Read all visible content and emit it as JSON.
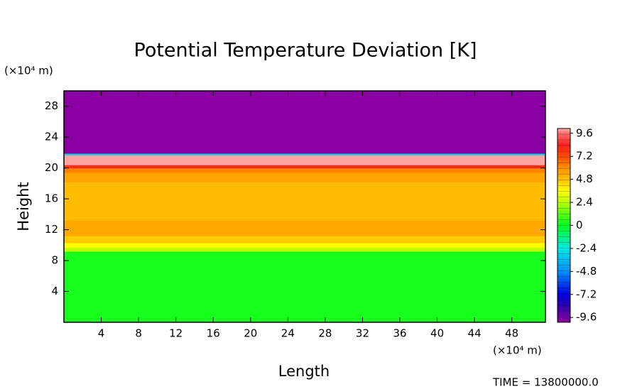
{
  "chart_data": {
    "type": "contour",
    "title": "Potential Temperature Deviation [K]",
    "x_label": "Length",
    "y_label": "Height",
    "x_unit": "(×10⁴ m)",
    "y_unit": "(×10⁴ m)",
    "annotation": "TIME = 13800000.0",
    "xlim": [
      0,
      51.6
    ],
    "ylim": [
      0,
      30
    ],
    "xticks": [
      4,
      8,
      12,
      16,
      20,
      24,
      28,
      32,
      36,
      40,
      44,
      48
    ],
    "yticks": [
      4,
      8,
      12,
      16,
      20,
      24,
      28
    ],
    "zlim": [
      -10.1,
      10.1
    ],
    "zticks": [
      9.6,
      7.2,
      4.8,
      2.4,
      0,
      -2.4,
      -4.8,
      -7.2,
      -9.6
    ],
    "colorscale": [
      {
        "value": -10.1,
        "color": "#8e00a0"
      },
      {
        "value": -8.4,
        "color": "#3000b0"
      },
      {
        "value": -7.2,
        "color": "#0000e0"
      },
      {
        "value": -4.8,
        "color": "#0090ff"
      },
      {
        "value": -2.4,
        "color": "#00e8e0"
      },
      {
        "value": 0,
        "color": "#00ff20"
      },
      {
        "value": 2.4,
        "color": "#b8ff00"
      },
      {
        "value": 3.6,
        "color": "#ffff00"
      },
      {
        "value": 4.8,
        "color": "#ffc000"
      },
      {
        "value": 6.0,
        "color": "#ff9000"
      },
      {
        "value": 7.2,
        "color": "#ff4a00"
      },
      {
        "value": 8.4,
        "color": "#ff2020"
      },
      {
        "value": 9.6,
        "color": "#ff7070"
      },
      {
        "value": 10.1,
        "color": "#ffb0b0"
      }
    ],
    "bands": [
      {
        "y0": 0,
        "y1": 9.2,
        "value": 0.3
      },
      {
        "y0": 9.2,
        "y1": 9.7,
        "value": 2.6
      },
      {
        "y0": 9.7,
        "y1": 10.3,
        "value": 3.6
      },
      {
        "y0": 10.3,
        "y1": 11.2,
        "value": 4.6
      },
      {
        "y0": 11.2,
        "y1": 13.2,
        "value": 5.4
      },
      {
        "y0": 13.2,
        "y1": 18.2,
        "value": 4.9
      },
      {
        "y0": 18.2,
        "y1": 19.4,
        "value": 5.5
      },
      {
        "y0": 19.4,
        "y1": 20.0,
        "value": 6.2
      },
      {
        "y0": 20.0,
        "y1": 20.4,
        "value": 8.0
      },
      {
        "y0": 20.4,
        "y1": 21.7,
        "value": 10.0
      },
      {
        "y0": 21.7,
        "y1": 21.9,
        "value": -3.0
      },
      {
        "y0": 21.9,
        "y1": 30,
        "value": -10.0
      }
    ]
  }
}
